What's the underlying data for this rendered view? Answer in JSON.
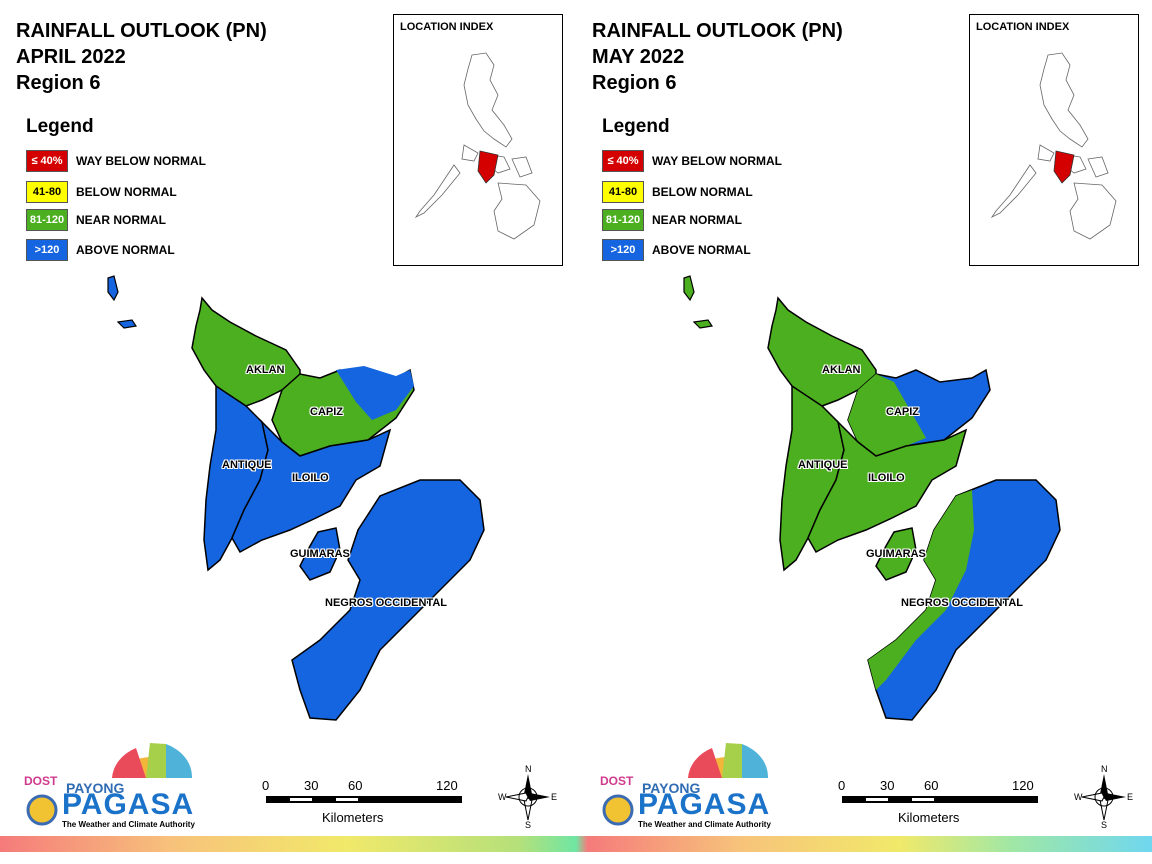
{
  "panels": [
    {
      "title_line1": "RAINFALL OUTLOOK (PN)",
      "title_line2": "APRIL 2022",
      "title_line3": "Region 6",
      "legend_title": "Legend",
      "legend": [
        {
          "swatch": "≤ 40%",
          "label": "WAY BELOW NORMAL",
          "color": "#d40000",
          "text_color": "#ffffff"
        },
        {
          "swatch": "41-80",
          "label": "BELOW NORMAL",
          "color": "#ffff00",
          "text_color": "#000000"
        },
        {
          "swatch": "81-120",
          "label": "NEAR NORMAL",
          "color": "#4caf1f",
          "text_color": "#ffffff"
        },
        {
          "swatch": ">120",
          "label": "ABOVE NORMAL",
          "color": "#1565e0",
          "text_color": "#ffffff"
        }
      ],
      "location_index": "LOCATION INDEX",
      "provinces": {
        "aklan": {
          "name": "AKLAN",
          "category": "NEAR NORMAL"
        },
        "capiz": {
          "name": "CAPIZ",
          "category": "NEAR NORMAL"
        },
        "antique": {
          "name": "ANTIQUE",
          "category": "ABOVE NORMAL"
        },
        "iloilo": {
          "name": "ILOILO",
          "category": "ABOVE NORMAL"
        },
        "guimaras": {
          "name": "GUIMARAS",
          "category": "ABOVE NORMAL"
        },
        "negros": {
          "name": "NEGROS OCCIDENTAL",
          "category": "ABOVE NORMAL"
        }
      },
      "scale": {
        "ticks": [
          "0",
          "30",
          "60",
          "120"
        ],
        "unit": "Kilometers"
      },
      "compass": {
        "n": "N",
        "e": "E",
        "s": "S",
        "w": "W"
      },
      "logo": {
        "dost": "DOST",
        "payong": "PAYONG",
        "pagasa": "PAGASA",
        "tagline": "The Weather and Climate Authority"
      }
    },
    {
      "title_line1": "RAINFALL OUTLOOK (PN)",
      "title_line2": "MAY 2022",
      "title_line3": "Region 6",
      "legend_title": "Legend",
      "legend": [
        {
          "swatch": "≤ 40%",
          "label": "WAY BELOW NORMAL",
          "color": "#d40000",
          "text_color": "#ffffff"
        },
        {
          "swatch": "41-80",
          "label": "BELOW NORMAL",
          "color": "#ffff00",
          "text_color": "#000000"
        },
        {
          "swatch": "81-120",
          "label": "NEAR NORMAL",
          "color": "#4caf1f",
          "text_color": "#ffffff"
        },
        {
          "swatch": ">120",
          "label": "ABOVE NORMAL",
          "color": "#1565e0",
          "text_color": "#ffffff"
        }
      ],
      "location_index": "LOCATION INDEX",
      "provinces": {
        "aklan": {
          "name": "AKLAN",
          "category": "NEAR NORMAL"
        },
        "capiz": {
          "name": "CAPIZ",
          "category": "ABOVE NORMAL"
        },
        "antique": {
          "name": "ANTIQUE",
          "category": "NEAR NORMAL"
        },
        "iloilo": {
          "name": "ILOILO",
          "category": "NEAR NORMAL"
        },
        "guimaras": {
          "name": "GUIMARAS",
          "category": "NEAR NORMAL"
        },
        "negros": {
          "name": "NEGROS OCCIDENTAL",
          "category": "ABOVE NORMAL"
        }
      },
      "scale": {
        "ticks": [
          "0",
          "30",
          "60",
          "120"
        ],
        "unit": "Kilometers"
      },
      "compass": {
        "n": "N",
        "e": "E",
        "s": "S",
        "w": "W"
      },
      "logo": {
        "dost": "DOST",
        "payong": "PAYONG",
        "pagasa": "PAGASA",
        "tagline": "The Weather and Climate Authority"
      }
    }
  ]
}
